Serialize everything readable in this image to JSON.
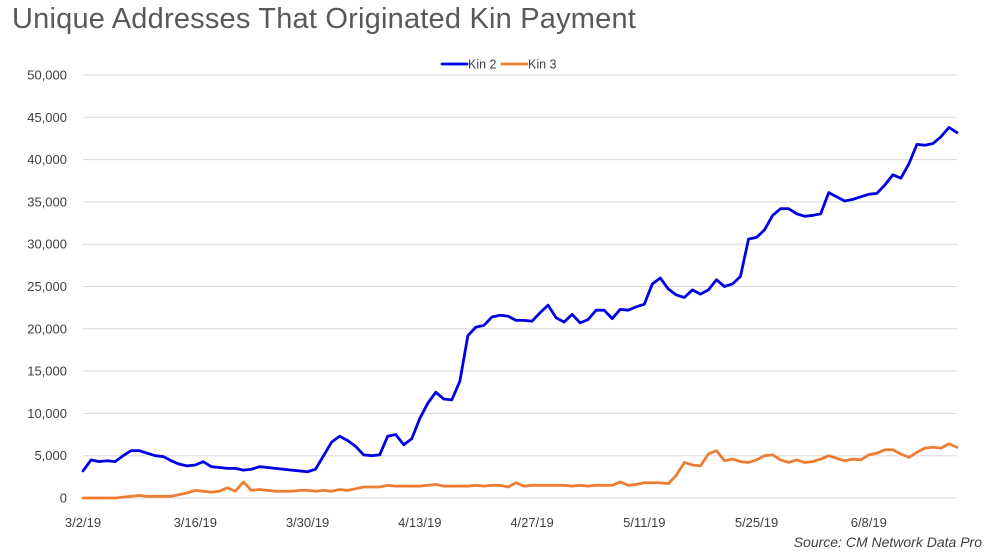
{
  "chart_data": {
    "type": "line",
    "title": "Unique Addresses That Originated Kin Payment",
    "source": "Source: CM Network Data Pro",
    "ylim": [
      0,
      50000
    ],
    "yticks": [
      0,
      5000,
      10000,
      15000,
      20000,
      25000,
      30000,
      35000,
      40000,
      45000,
      50000
    ],
    "ytick_labels": [
      "0",
      "5,000",
      "10,000",
      "15,000",
      "20,000",
      "25,000",
      "30,000",
      "35,000",
      "40,000",
      "45,000",
      "50,000"
    ],
    "xtick_labels": [
      "3/2/19",
      "3/16/19",
      "3/30/19",
      "4/13/19",
      "4/27/19",
      "5/11/19",
      "5/25/19",
      "6/8/19"
    ],
    "x_start": "3/2/19",
    "x_end": "6/22/19",
    "grid": true,
    "legend_position": "top",
    "series": [
      {
        "name": "Kin 2",
        "color": "#0000e6",
        "values": [
          3200,
          4500,
          4300,
          4400,
          4300,
          5000,
          5600,
          5600,
          5300,
          5000,
          4900,
          4400,
          4000,
          3800,
          3900,
          4300,
          3700,
          3600,
          3500,
          3500,
          3300,
          3400,
          3700,
          3600,
          3500,
          3400,
          3300,
          3200,
          3100,
          3400,
          5000,
          6600,
          7300,
          6800,
          6100,
          5100,
          5000,
          5100,
          7300,
          7500,
          6300,
          7000,
          9400,
          11200,
          12500,
          11700,
          11600,
          13800,
          19200,
          20200,
          20400,
          21400,
          21600,
          21500,
          21000,
          21000,
          20900,
          21900,
          22800,
          21300,
          20800,
          21700,
          20700,
          21100,
          22200,
          22200,
          21200,
          22300,
          22200,
          22600,
          22900,
          25300,
          26000,
          24700,
          24000,
          23700,
          24600,
          24100,
          24600,
          25800,
          25000,
          25300,
          26200,
          30600,
          30800,
          31700,
          33400,
          34200,
          34200,
          33600,
          33300,
          33400,
          33600,
          36100,
          35600,
          35100,
          35300,
          35600,
          35900,
          36000,
          37000,
          38200,
          37800,
          39500,
          41800,
          41700,
          41900,
          42700,
          43800,
          43200
        ]
      },
      {
        "name": "Kin 3",
        "color": "#ed7d31",
        "values": [
          0,
          0,
          0,
          0,
          0,
          100,
          200,
          300,
          200,
          200,
          200,
          200,
          400,
          600,
          900,
          800,
          700,
          800,
          1200,
          800,
          1900,
          900,
          1000,
          900,
          800,
          800,
          800,
          900,
          900,
          800,
          900,
          800,
          1000,
          900,
          1100,
          1300,
          1300,
          1300,
          1500,
          1400,
          1400,
          1400,
          1400,
          1500,
          1600,
          1400,
          1400,
          1400,
          1400,
          1500,
          1400,
          1500,
          1500,
          1300,
          1800,
          1400,
          1500,
          1500,
          1500,
          1500,
          1500,
          1400,
          1500,
          1400,
          1500,
          1500,
          1500,
          1900,
          1500,
          1600,
          1800,
          1800,
          1800,
          1700,
          2700,
          4200,
          3900,
          3800,
          5200,
          5600,
          4400,
          4600,
          4300,
          4200,
          4500,
          5000,
          5100,
          4500,
          4200,
          4500,
          4200,
          4300,
          4600,
          5000,
          4700,
          4400,
          4600,
          4500,
          5100,
          5300,
          5700,
          5700,
          5200,
          4800,
          5400,
          5900,
          6000,
          5900,
          6400,
          6000
        ]
      }
    ]
  }
}
